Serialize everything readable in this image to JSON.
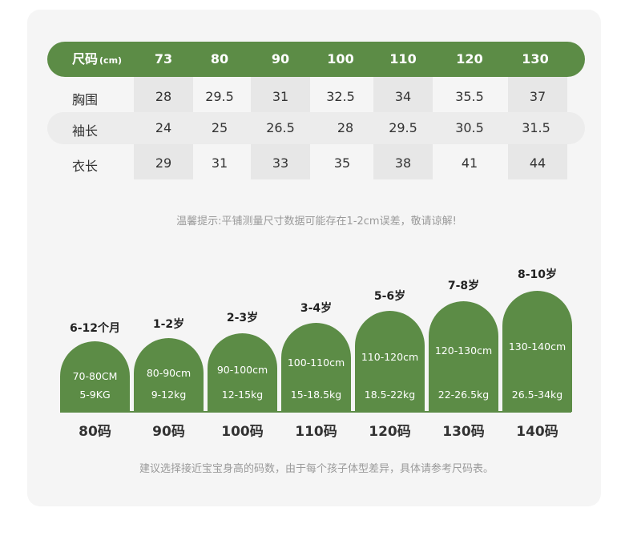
{
  "table": {
    "header_label": "尺码",
    "header_unit": "(cm)",
    "sizes": [
      "73",
      "80",
      "90",
      "100",
      "110",
      "120",
      "130"
    ],
    "rows": [
      {
        "label": "胸围",
        "values": [
          "28",
          "29.5",
          "31",
          "32.5",
          "34",
          "35.5",
          "37"
        ]
      },
      {
        "label": "袖长",
        "values": [
          "24",
          "25",
          "26.5",
          "28",
          "29.5",
          "30.5",
          "31.5"
        ]
      },
      {
        "label": "衣长",
        "values": [
          "29",
          "31",
          "33",
          "35",
          "38",
          "41",
          "44"
        ]
      }
    ]
  },
  "tip_top": "温馨提示:平铺测量尺寸数据可能存在1-2cm误差，敬请谅解!",
  "guide": {
    "items": [
      {
        "age": "6-12个月",
        "height": "70-80CM",
        "weight": "5-9KG",
        "size": "80码"
      },
      {
        "age": "1-2岁",
        "height": "80-90cm",
        "weight": "9-12kg",
        "size": "90码"
      },
      {
        "age": "2-3岁",
        "height": "90-100cm",
        "weight": "12-15kg",
        "size": "100码"
      },
      {
        "age": "3-4岁",
        "height": "100-110cm",
        "weight": "15-18.5kg",
        "size": "110码"
      },
      {
        "age": "5-6岁",
        "height": "110-120cm",
        "weight": "18.5-22kg",
        "size": "120码"
      },
      {
        "age": "7-8岁",
        "height": "120-130cm",
        "weight": "22-26.5kg",
        "size": "130码"
      },
      {
        "age": "8-10岁",
        "height": "130-140cm",
        "weight": "26.5-34kg",
        "size": "140码"
      }
    ]
  },
  "tip_bottom": "建议选择接近宝宝身高的码数，由于每个孩子体型差异，具体请参考尺码表。",
  "colors": {
    "accent": "#5c8c46",
    "card_bg": "#f5f5f5"
  }
}
